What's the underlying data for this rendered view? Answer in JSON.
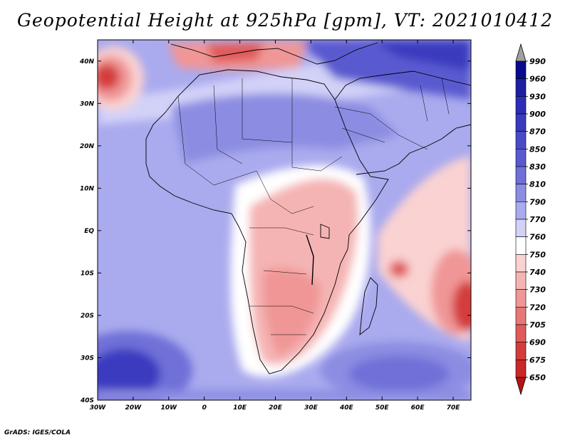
{
  "title": "Geopotential Height at 925hPa [gpm], VT: 2021010412",
  "credit": "GrADS: IGES/COLA",
  "map": {
    "variable": "Geopotential Height",
    "level": "925hPa",
    "units": "gpm",
    "valid_time": "2021010412",
    "lon_range": [
      -30,
      75
    ],
    "lat_range": [
      -40,
      45
    ],
    "lon_ticks": [
      "30W",
      "20W",
      "10W",
      "0",
      "10E",
      "20E",
      "30E",
      "40E",
      "50E",
      "60E",
      "70E"
    ],
    "lon_values": [
      -30,
      -20,
      -10,
      0,
      10,
      20,
      30,
      40,
      50,
      60,
      70
    ],
    "lat_ticks": [
      "40N",
      "30N",
      "20N",
      "10N",
      "EQ",
      "10S",
      "20S",
      "30S",
      "40S"
    ],
    "lat_values": [
      40,
      30,
      20,
      10,
      0,
      -10,
      -20,
      -30,
      -40
    ]
  },
  "colorbar": {
    "levels": [
      "990",
      "960",
      "930",
      "900",
      "870",
      "850",
      "830",
      "810",
      "790",
      "770",
      "760",
      "750",
      "740",
      "730",
      "720",
      "705",
      "690",
      "675",
      "650"
    ],
    "colors": [
      "#0a0a8c",
      "#1e1ea0",
      "#2c2cb4",
      "#3a3ac0",
      "#4a4ac8",
      "#5a5ad0",
      "#7070d8",
      "#8c8ce2",
      "#aaaaee",
      "#d2d2f8",
      "#ffffff",
      "#fad2d2",
      "#f5b4b4",
      "#f09696",
      "#e87878",
      "#e05a5a",
      "#d43c3c",
      "#c82828",
      "#b41414"
    ],
    "top_arrow_color": "#a0a0a0",
    "bottom_arrow_color": "#b41414"
  }
}
